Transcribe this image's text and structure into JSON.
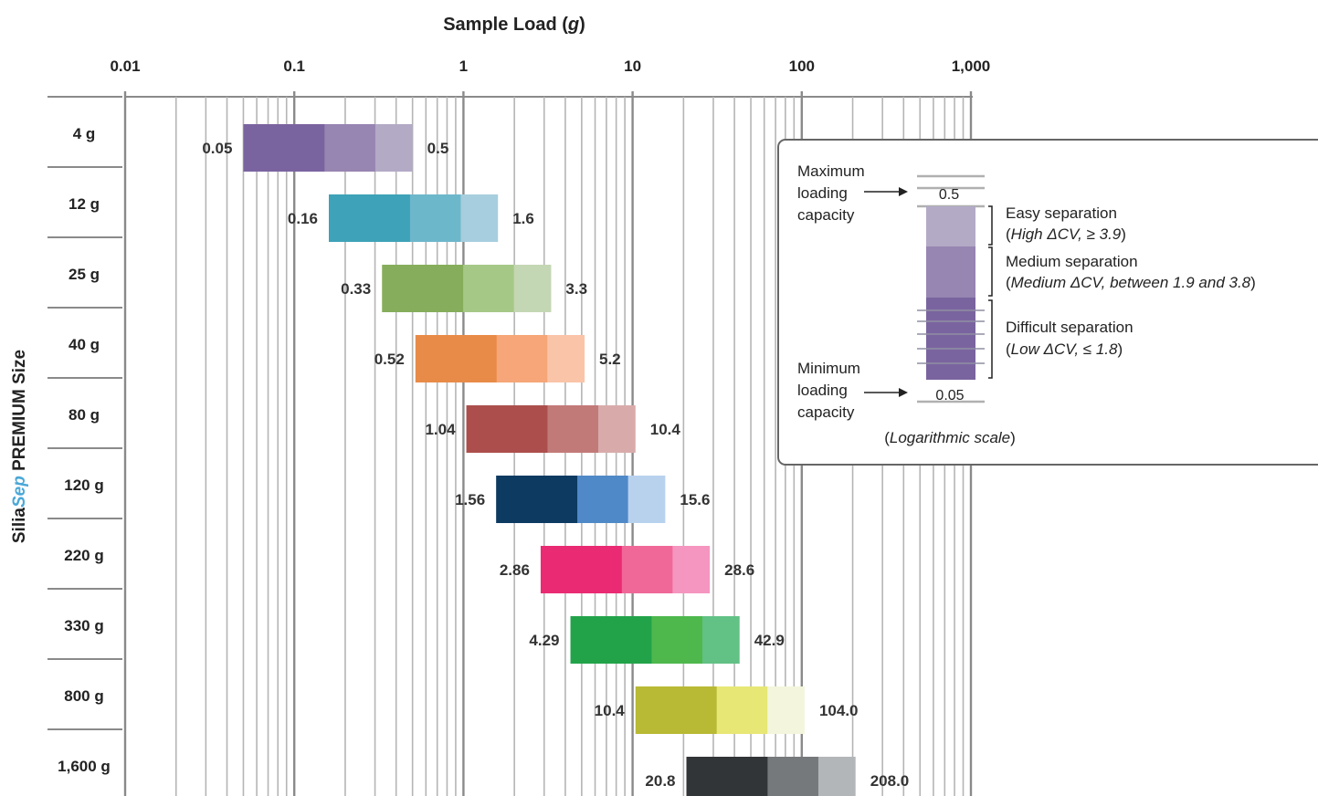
{
  "chart_data": {
    "type": "bar",
    "title": "",
    "xlabel": "Sample Load (g)",
    "xlabel_main": "Sample Load (",
    "xlabel_unit": "g",
    "xlabel_close": ")",
    "x_scale": "log",
    "xlim": [
      0.01,
      1000
    ],
    "x_ticks": [
      {
        "value": 0.01,
        "label": "0.01"
      },
      {
        "value": 0.1,
        "label": "0.1"
      },
      {
        "value": 1,
        "label": "1"
      },
      {
        "value": 10,
        "label": "10"
      },
      {
        "value": 100,
        "label": "100"
      },
      {
        "value": 1000,
        "label": "1,000"
      }
    ],
    "ylabel": "SiliaSep PREMIUM Size",
    "ylabel_parts": {
      "prefix": "Silia",
      "brand": "Sep",
      "suffix": " PREMIUM Size"
    },
    "grid": true,
    "rows": [
      {
        "size": "4 g",
        "min": 0.05,
        "max": 0.5,
        "min_label": "0.05",
        "max_label": "0.5",
        "colors": [
          "#7a649f",
          "#9785b2",
          "#b3aac6"
        ]
      },
      {
        "size": "12 g",
        "min": 0.16,
        "max": 1.6,
        "min_label": "0.16",
        "max_label": "1.6",
        "colors": [
          "#3ea2b8",
          "#6db7cb",
          "#a7cede"
        ]
      },
      {
        "size": "25 g",
        "min": 0.33,
        "max": 3.3,
        "min_label": "0.33",
        "max_label": "3.3",
        "colors": [
          "#86ad5b",
          "#a6c887",
          "#c4d7b4"
        ]
      },
      {
        "size": "40 g",
        "min": 0.52,
        "max": 5.2,
        "min_label": "0.52",
        "max_label": "5.2",
        "colors": [
          "#e88b48",
          "#f6a678",
          "#fac4a8"
        ]
      },
      {
        "size": "80 g",
        "min": 1.04,
        "max": 10.4,
        "min_label": "1.04",
        "max_label": "10.4",
        "colors": [
          "#ac4f4c",
          "#c27a78",
          "#d8abaa"
        ]
      },
      {
        "size": "120 g",
        "min": 1.56,
        "max": 15.6,
        "min_label": "1.56",
        "max_label": "15.6",
        "colors": [
          "#0c3a61",
          "#4f89c8",
          "#b8d2ee"
        ]
      },
      {
        "size": "220 g",
        "min": 2.86,
        "max": 28.6,
        "min_label": "2.86",
        "max_label": "28.6",
        "colors": [
          "#ea2a72",
          "#f06898",
          "#f596c0"
        ]
      },
      {
        "size": "330 g",
        "min": 4.29,
        "max": 42.9,
        "min_label": "4.29",
        "max_label": "42.9",
        "colors": [
          "#22a34a",
          "#4eb84d",
          "#62c185"
        ]
      },
      {
        "size": "800 g",
        "min": 10.4,
        "max": 104.0,
        "min_label": "10.4",
        "max_label": "104.0",
        "colors": [
          "#b8b934",
          "#e6e775",
          "#f3f6dc"
        ]
      },
      {
        "size": "1,600 g",
        "min": 20.8,
        "max": 208.0,
        "min_label": "20.8",
        "max_label": "208.0",
        "colors": [
          "#323538",
          "#75797c",
          "#b3b6b8"
        ]
      }
    ],
    "legend": {
      "placement": "right",
      "max_text": [
        "Maximum",
        "loading",
        "capacity"
      ],
      "min_text": [
        "Minimum",
        "loading",
        "capacity"
      ],
      "max_value": "0.5",
      "min_value": "0.05",
      "colors": [
        "#b3aac6",
        "#9785b2",
        "#7a649f"
      ],
      "entries": [
        {
          "name": "Easy separation",
          "detail": "High ΔCV, ≥ 3.9"
        },
        {
          "name": "Medium separation",
          "detail": "Medium ΔCV, between 1.9 and 3.8"
        },
        {
          "name": "Difficult separation",
          "detail": "Low ΔCV, ≤ 1.8"
        }
      ],
      "scale_note": "Logarithmic scale"
    }
  }
}
